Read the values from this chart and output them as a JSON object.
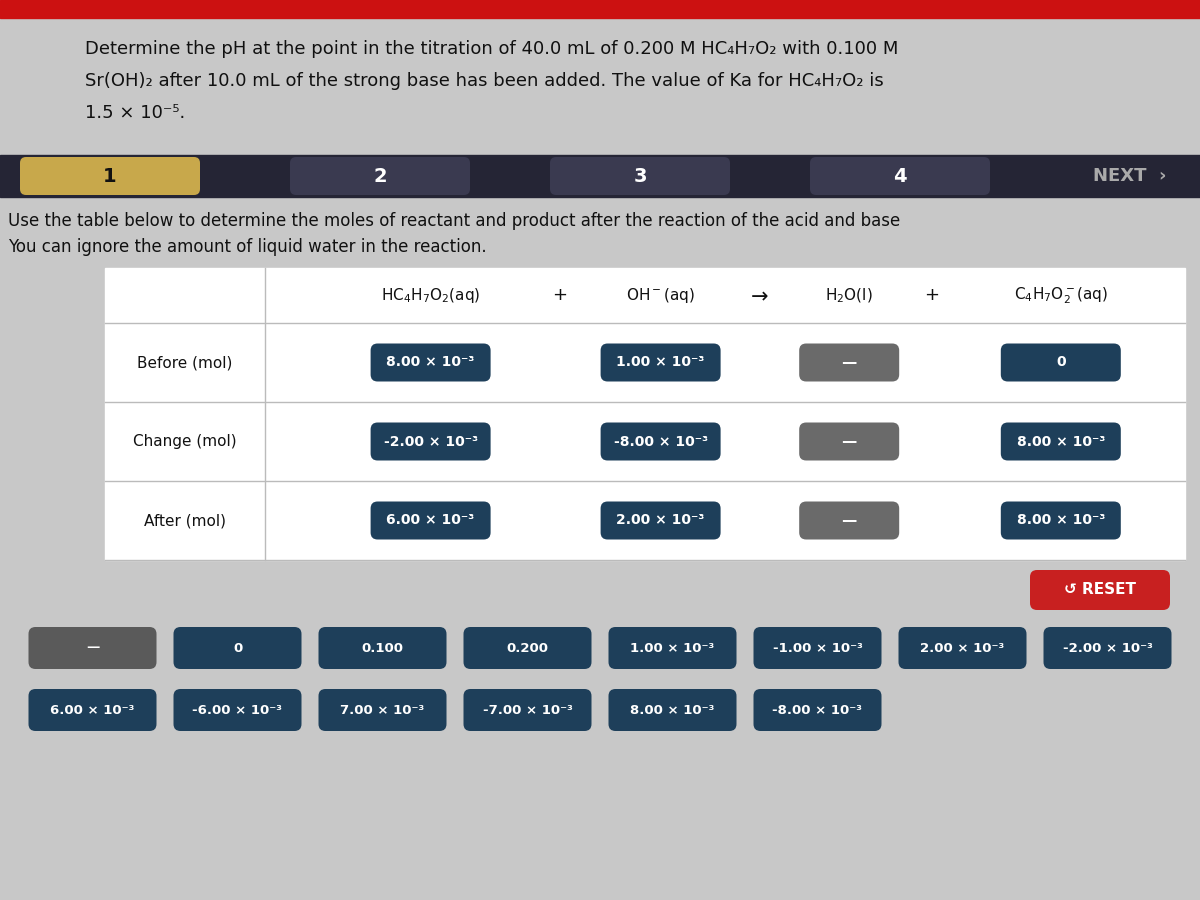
{
  "title_line1": "Determine the pH at the point in the titration of 40.0 mL of 0.200 M HC₄H₇O₂ with 0.100 M",
  "title_line2": "Sr(OH)₂ after 10.0 mL of the strong base has been added. The value of Ka for HC₄H₇O₂ is",
  "title_line3": "1.5 × 10⁻⁵.",
  "nav_labels": [
    "1",
    "2",
    "3",
    "4"
  ],
  "next_label": "NEXT",
  "instruction_line1": "Use the table below to determine the moles of reactant and product after the reaction of the acid and base",
  "instruction_line2": "You can ignore the amount of liquid water in the reaction.",
  "row_labels": [
    "Before (mol)",
    "Change (mol)",
    "After (mol)"
  ],
  "table_data_col1": [
    "8.00 × 10⁻³",
    "-2.00 × 10⁻³",
    "6.00 × 10⁻³"
  ],
  "table_data_col2": [
    "1.00 × 10⁻³",
    "-8.00 × 10⁻³",
    "2.00 × 10⁻³"
  ],
  "table_data_h2o": [
    "—",
    "—",
    "—"
  ],
  "table_data_col4": [
    "0",
    "8.00 × 10⁻³",
    "8.00 × 10⁻³"
  ],
  "answer_tiles_row1": [
    "—",
    "0",
    "0.100",
    "0.200",
    "1.00 × 10⁻³",
    "-1.00 × 10⁻³",
    "2.00 × 10⁻³",
    "-2.00 × 10⁻³"
  ],
  "answer_tiles_row2": [
    "6.00 × 10⁻³",
    "-6.00 × 10⁻³",
    "7.00 × 10⁻³",
    "-7.00 × 10⁻³",
    "8.00 × 10⁻³",
    "-8.00 × 10⁻³"
  ],
  "tile_color_dark": "#1e3f5a",
  "tile_color_gray": "#5a5a5a",
  "tile_color_h2o": "#6a6a6a",
  "bg_color": "#c8c8c8",
  "nav_bg": "#252535",
  "nav_gold": "#c8a84b",
  "nav_dark": "#3a3a50",
  "reset_color": "#c82020",
  "white": "#ffffff",
  "black": "#111111",
  "table_border": "#bbbbbb",
  "red_bar": "#cc1111"
}
